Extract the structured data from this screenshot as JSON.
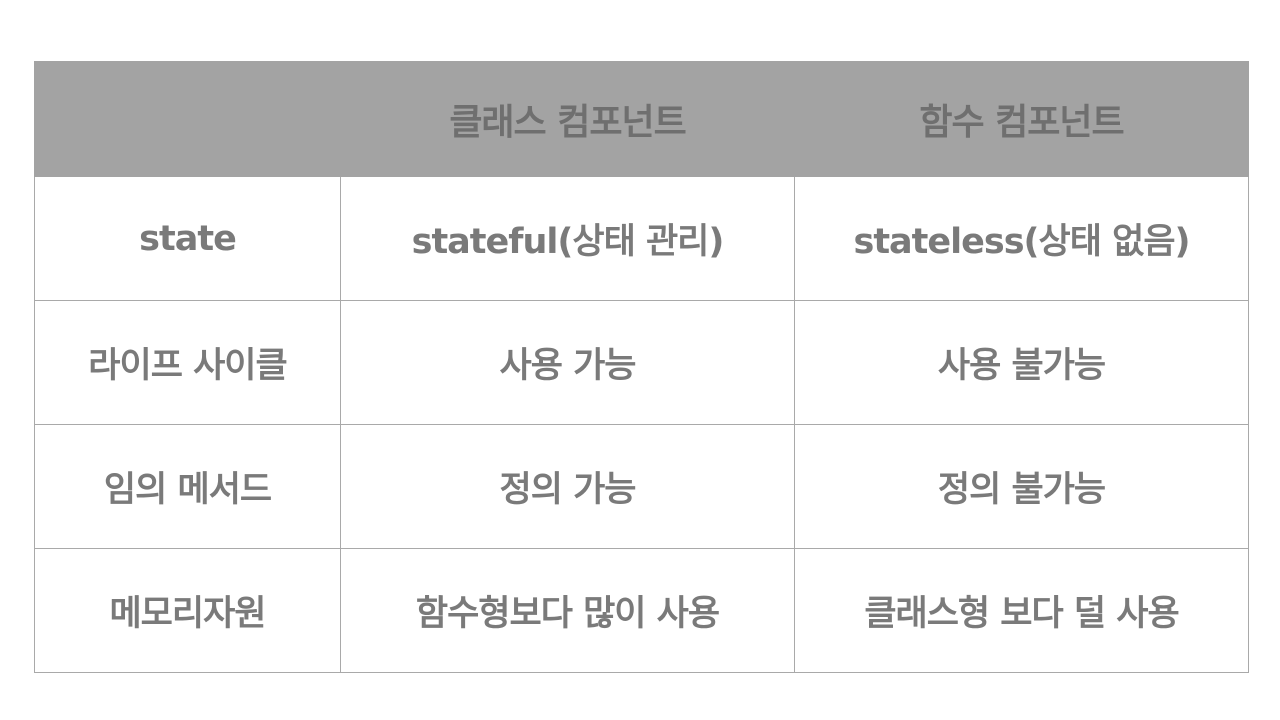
{
  "table": {
    "header": [
      "",
      "클래스 컴포넌트",
      "함수 컴포넌트"
    ],
    "rows": [
      [
        "state",
        "stateful(상태 관리)",
        "stateless(상태 없음)"
      ],
      [
        "라이프 사이클",
        "사용 가능",
        "사용 불가능"
      ],
      [
        "임의 메서드",
        "정의 가능",
        "정의 불가능"
      ],
      [
        "메모리자원",
        "함수형보다 많이 사용",
        "클래스형 보다 덜 사용"
      ]
    ]
  },
  "colors": {
    "header_background": "#a3a3a3",
    "text": "#7a7a7a",
    "border": "#a9a9a9"
  }
}
